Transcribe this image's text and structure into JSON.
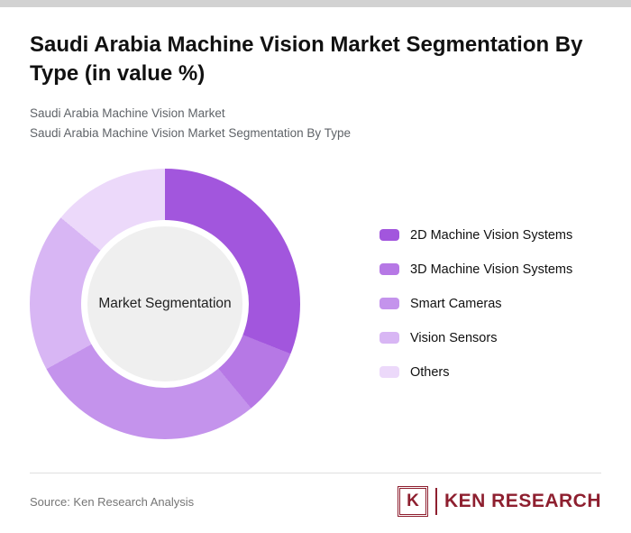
{
  "page": {
    "title": "Saudi Arabia Machine Vision Market Segmentation By Type (in value %)",
    "subtitle1": "Saudi Arabia Machine Vision Market",
    "subtitle2": "Saudi Arabia Machine Vision Market Segmentation By Type",
    "source": "Source: Ken Research Analysis",
    "brand": {
      "name": "KEN RESEARCH",
      "letter": "K",
      "color": "#8e1f2f"
    }
  },
  "chart_data": {
    "type": "pie",
    "donut": true,
    "title": "Saudi Arabia Machine Vision Market Segmentation By Type (in value %)",
    "center_label": "Market Segmentation",
    "categories": [
      "2D Machine Vision Systems",
      "3D Machine Vision Systems",
      "Smart Cameras",
      "Vision Sensors",
      "Others"
    ],
    "values": [
      31,
      8,
      28,
      19,
      14
    ],
    "colors": [
      "#a256dd",
      "#b678e5",
      "#c493ec",
      "#d8b6f4",
      "#ecd9fa"
    ],
    "legend_position": "right",
    "start_angle_deg": 0,
    "grid": false
  }
}
